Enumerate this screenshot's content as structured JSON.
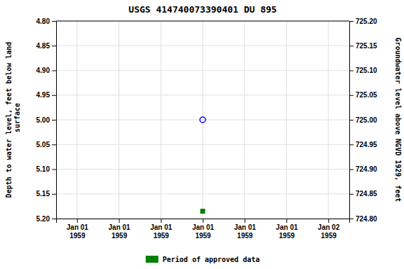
{
  "chart_data": {
    "type": "scatter",
    "title": "USGS 414740073390401 DU 895",
    "ylabel": "Depth to water level, feet below land\n surface",
    "y2label": "Groundwater level above NGVD 1929, feet",
    "categories": [
      "Jan 01\n1959",
      "Jan 01\n1959",
      "Jan 01\n1959",
      "Jan 01\n1959",
      "Jan 01\n1959",
      "Jan 01\n1959",
      "Jan 02\n1959"
    ],
    "series": [
      {
        "color": "blue",
        "marker": "open-circle",
        "values": [
          null,
          null,
          null,
          5.0,
          null,
          null,
          null
        ]
      },
      {
        "name": "Period of approved data",
        "color": "#008000",
        "marker": "square",
        "values": [
          null,
          null,
          null,
          5.185,
          null,
          null,
          null
        ]
      }
    ],
    "ylim": [
      5.2,
      4.8
    ],
    "yticks": [
      {
        "value": 4.8,
        "label": "4.80"
      },
      {
        "value": 4.85,
        "label": "4.85"
      },
      {
        "value": 4.9,
        "label": "4.90"
      },
      {
        "value": 4.95,
        "label": "4.95"
      },
      {
        "value": 5.0,
        "label": "5.00"
      },
      {
        "value": 5.05,
        "label": "5.05"
      },
      {
        "value": 5.1,
        "label": "5.10"
      },
      {
        "value": 5.15,
        "label": "5.15"
      },
      {
        "value": 5.2,
        "label": "5.20"
      }
    ],
    "y2lim": [
      724.8,
      725.2
    ],
    "y2ticks": [
      {
        "value": 725.2,
        "label": "725.20"
      },
      {
        "value": 725.15,
        "label": "725.15"
      },
      {
        "value": 725.1,
        "label": "725.10"
      },
      {
        "value": 725.05,
        "label": "725.05"
      },
      {
        "value": 725.0,
        "label": "725.00"
      },
      {
        "value": 724.95,
        "label": "724.95"
      },
      {
        "value": 724.9,
        "label": "724.90"
      },
      {
        "value": 724.85,
        "label": "724.85"
      },
      {
        "value": 724.8,
        "label": "724.80"
      }
    ],
    "grid": true,
    "legend": "bottom"
  }
}
